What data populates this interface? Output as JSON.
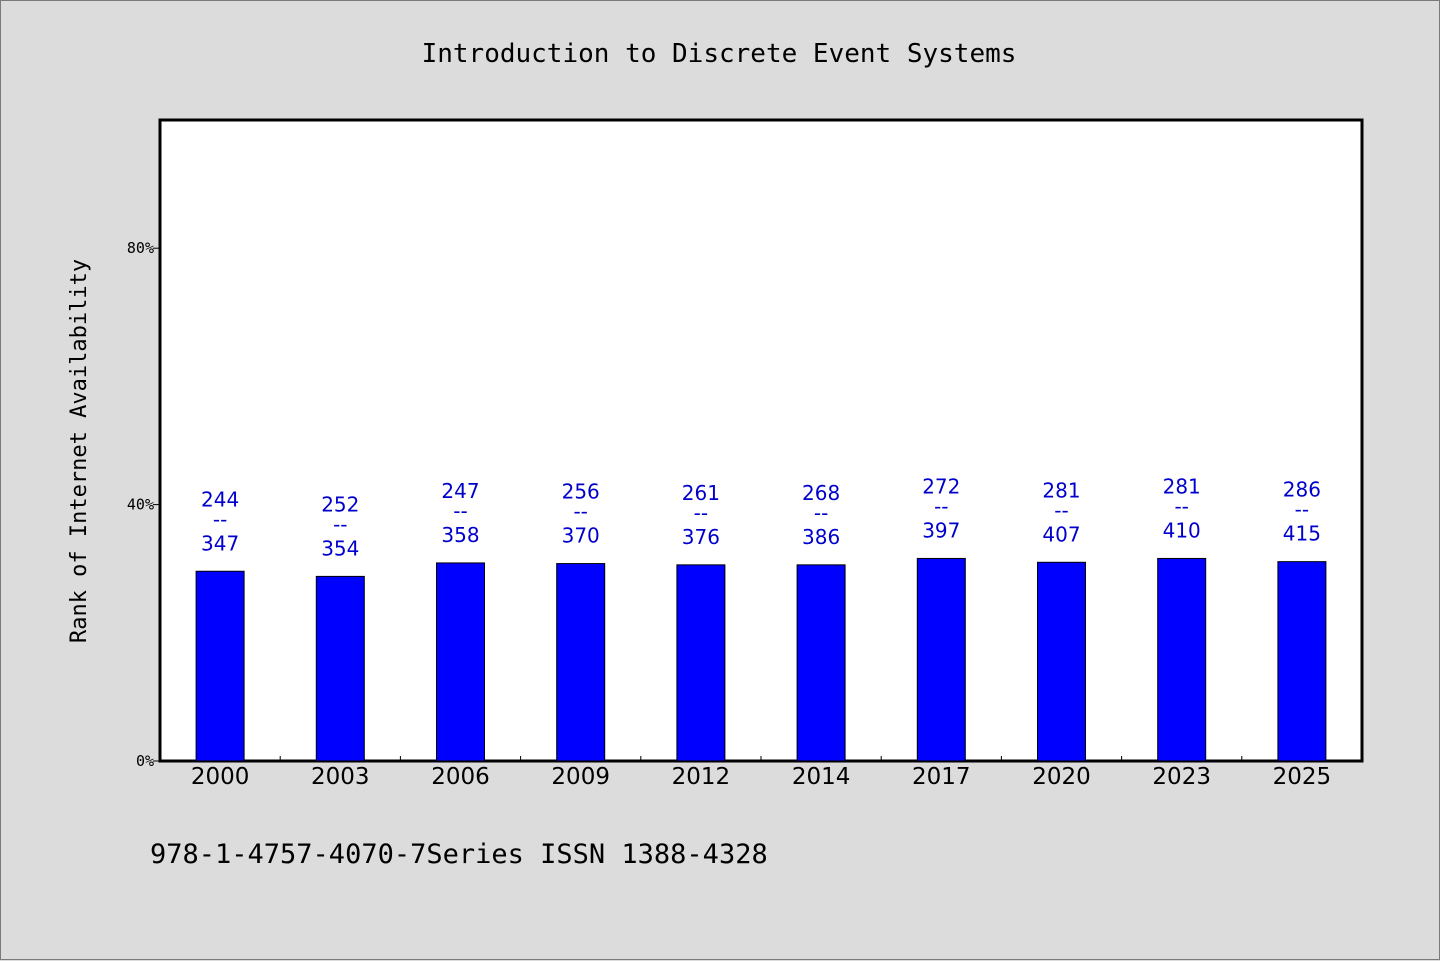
{
  "chart_data": {
    "type": "bar",
    "title": "Introduction to Discrete Event Systems",
    "ylabel": "Rank of Internet Availability",
    "xlabel": "",
    "ylim": [
      0,
      100
    ],
    "yticks": [
      0,
      40,
      80
    ],
    "ytick_labels": [
      "0%",
      "40%",
      "80%"
    ],
    "categories": [
      "2000",
      "2003",
      "2006",
      "2009",
      "2012",
      "2014",
      "2017",
      "2020",
      "2023",
      "2025"
    ],
    "values": [
      29.6,
      28.8,
      30.9,
      30.8,
      30.6,
      30.6,
      31.6,
      31.0,
      31.6,
      31.1
    ],
    "value_labels": [
      {
        "top": "244",
        "sep": "--",
        "bottom": "347"
      },
      {
        "top": "252",
        "sep": "--",
        "bottom": "354"
      },
      {
        "top": "247",
        "sep": "--",
        "bottom": "358"
      },
      {
        "top": "256",
        "sep": "--",
        "bottom": "370"
      },
      {
        "top": "261",
        "sep": "--",
        "bottom": "376"
      },
      {
        "top": "268",
        "sep": "--",
        "bottom": "386"
      },
      {
        "top": "272",
        "sep": "--",
        "bottom": "397"
      },
      {
        "top": "281",
        "sep": "--",
        "bottom": "407"
      },
      {
        "top": "281",
        "sep": "--",
        "bottom": "410"
      },
      {
        "top": "286",
        "sep": "--",
        "bottom": "415"
      }
    ],
    "grid": false,
    "bar_color": "#0000ff",
    "label_color": "#0000cc"
  },
  "footer": {
    "text": "978-1-4757-4070-7Series ISSN 1388-4328"
  }
}
